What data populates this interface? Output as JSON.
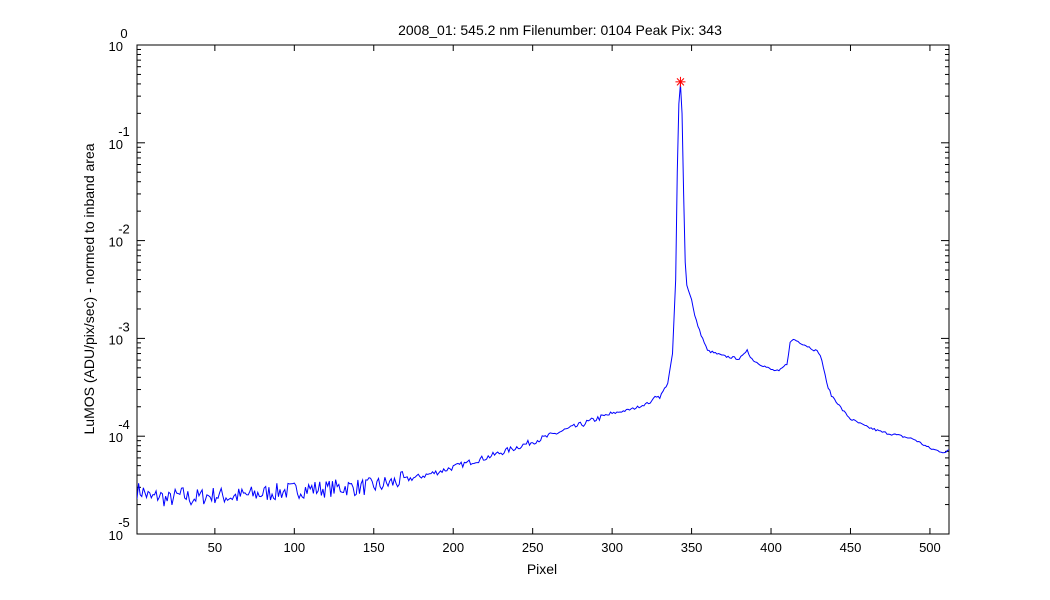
{
  "chart_data": {
    "type": "line",
    "title": "2008_01: 545.2 nm  Filenumber: 0104 Peak Pix: 343",
    "xlabel": "Pixel",
    "ylabel": "LuMOS (ADU/pix/sec) - normed to inband area",
    "xlim": [
      1,
      512
    ],
    "ylim": [
      1e-05,
      1
    ],
    "yscale": "log",
    "grid": false,
    "x_ticks": [
      50,
      100,
      150,
      200,
      250,
      300,
      350,
      400,
      450,
      500
    ],
    "y_ticks": [
      {
        "value": 1,
        "base": "10",
        "exp": "0"
      },
      {
        "value": 0.1,
        "base": "10",
        "exp": "-1"
      },
      {
        "value": 0.01,
        "base": "10",
        "exp": "-2"
      },
      {
        "value": 0.001,
        "base": "10",
        "exp": "-3"
      },
      {
        "value": 0.0001,
        "base": "10",
        "exp": "-4"
      },
      {
        "value": 1e-05,
        "base": "10",
        "exp": "-5"
      }
    ],
    "series": [
      {
        "color": "#0000ff",
        "x": [
          1,
          5,
          10,
          15,
          20,
          25,
          30,
          35,
          40,
          50,
          60,
          70,
          80,
          90,
          100,
          110,
          120,
          130,
          140,
          150,
          160,
          170,
          180,
          190,
          200,
          210,
          220,
          230,
          240,
          250,
          260,
          270,
          280,
          290,
          300,
          305,
          310,
          315,
          320,
          325,
          327,
          330,
          335,
          338,
          340,
          341,
          342,
          343,
          344,
          345,
          346,
          347,
          348,
          350,
          352,
          355,
          360,
          370,
          380,
          383,
          385,
          387,
          390,
          400,
          405,
          410,
          412,
          414,
          416,
          420,
          425,
          430,
          432,
          435,
          438,
          440,
          445,
          450,
          460,
          470,
          480,
          490,
          500,
          505,
          510,
          512
        ],
        "y": [
          2.8e-05,
          2.7e-05,
          2.3e-05,
          2.5e-05,
          2.2e-05,
          2.4e-05,
          2.5e-05,
          2.3e-05,
          2.4e-05,
          2.5e-05,
          2.4e-05,
          2.5e-05,
          2.6e-05,
          2.7e-05,
          2.8e-05,
          2.9e-05,
          2.9e-05,
          3e-05,
          3e-05,
          3.1e-05,
          3.3e-05,
          3.6e-05,
          3.9e-05,
          4.3e-05,
          4.8e-05,
          5.4e-05,
          6e-05,
          6.8e-05,
          7.7e-05,
          8.8e-05,
          0.0001,
          0.000115,
          0.00013,
          0.00015,
          0.00017,
          0.000178,
          0.000185,
          0.000195,
          0.00021,
          0.000225,
          0.00026,
          0.00025,
          0.00035,
          0.0007,
          0.004,
          0.05,
          0.25,
          0.4,
          0.2,
          0.03,
          0.006,
          0.0035,
          0.0031,
          0.0025,
          0.0017,
          0.0012,
          0.00075,
          0.00066,
          0.00062,
          0.00068,
          0.00078,
          0.00064,
          0.00058,
          0.00048,
          0.00046,
          0.00055,
          0.0009,
          0.00098,
          0.00095,
          0.00088,
          0.0008,
          0.00072,
          0.0006,
          0.00035,
          0.00026,
          0.00024,
          0.000185,
          0.00015,
          0.000125,
          0.00011,
          0.000102,
          9.3e-05,
          7.5e-05,
          7.1e-05,
          6.8e-05,
          7.2e-05
        ]
      }
    ],
    "marker": {
      "x": 343,
      "y": 0.42,
      "symbol": "*",
      "color": "#ff0000"
    }
  }
}
